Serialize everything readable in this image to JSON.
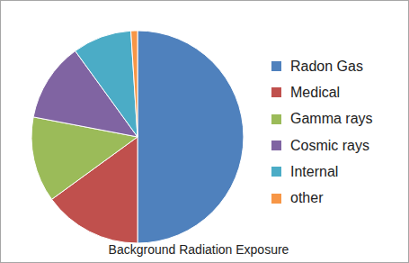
{
  "chart_data": {
    "type": "pie",
    "title": "Background Radiation Exposure",
    "categories": [
      "Radon Gas",
      "Medical",
      "Gamma rays",
      "Cosmic rays",
      "Internal",
      "other"
    ],
    "values": [
      50,
      15,
      13,
      12,
      9,
      1
    ],
    "colors": [
      "#4f81bd",
      "#c0504d",
      "#9bbb59",
      "#8064a2",
      "#4bacc6",
      "#f79646"
    ],
    "legend": "right"
  }
}
